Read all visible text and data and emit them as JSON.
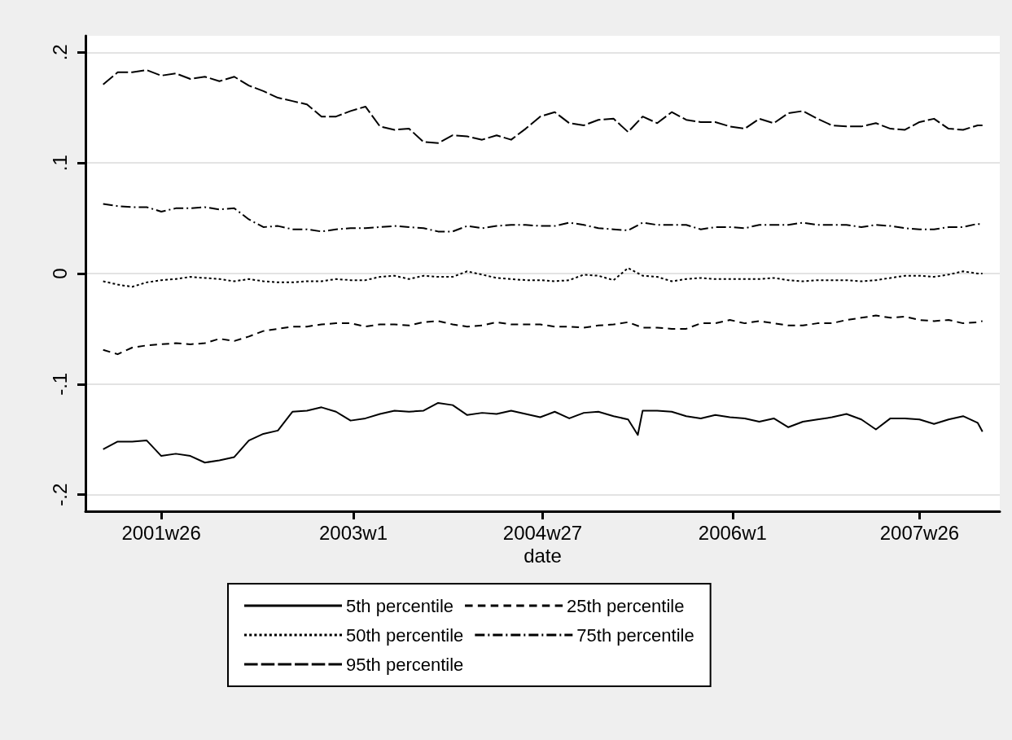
{
  "chart_data": {
    "type": "line",
    "xlabel": "date",
    "x": [
      "2001-01-08",
      "2001-02-19",
      "2001-04-02",
      "2001-05-14",
      "2001-06-25",
      "2001-08-06",
      "2001-09-17",
      "2001-10-29",
      "2001-12-10",
      "2002-01-22",
      "2002-03-05",
      "2002-04-16",
      "2002-05-28",
      "2002-07-09",
      "2002-08-20",
      "2002-10-01",
      "2002-11-12",
      "2002-12-24",
      "2003-02-05",
      "2003-03-19",
      "2003-04-30",
      "2003-06-11",
      "2003-07-23",
      "2003-09-03",
      "2003-10-15",
      "2003-11-26",
      "2004-01-08",
      "2004-02-19",
      "2004-04-01",
      "2004-05-13",
      "2004-06-24",
      "2004-08-05",
      "2004-09-16",
      "2004-10-28",
      "2004-12-09",
      "2005-01-22",
      "2005-03-05",
      "2005-04-16",
      "2005-05-28",
      "2005-07-09",
      "2005-08-20",
      "2005-10-01",
      "2005-11-12",
      "2005-12-24",
      "2006-02-05",
      "2006-03-19",
      "2006-04-30",
      "2006-06-11",
      "2006-07-23",
      "2006-09-03",
      "2006-10-15",
      "2006-11-26",
      "2007-01-08",
      "2007-02-19",
      "2007-04-02",
      "2007-05-14",
      "2007-06-25",
      "2007-08-06",
      "2007-09-17",
      "2007-10-29",
      "2007-12-10",
      "2007-12-24"
    ],
    "series": [
      {
        "name": "5th percentile",
        "color": "#000000",
        "line_style": "solid",
        "x": [
          "2001-01-08",
          "2001-02-19",
          "2001-04-02",
          "2001-05-14",
          "2001-06-25",
          "2001-08-06",
          "2001-09-17",
          "2001-10-29",
          "2001-12-10",
          "2002-01-22",
          "2002-03-05",
          "2002-04-16",
          "2002-05-28",
          "2002-07-09",
          "2002-08-20",
          "2002-10-01",
          "2002-11-12",
          "2002-12-24",
          "2003-02-05",
          "2003-03-19",
          "2003-04-30",
          "2003-06-11",
          "2003-07-23",
          "2003-09-03",
          "2003-10-15",
          "2003-11-26",
          "2004-01-08",
          "2004-02-19",
          "2004-04-01",
          "2004-05-13",
          "2004-06-24",
          "2004-08-05",
          "2004-09-16",
          "2004-10-28",
          "2004-12-09",
          "2005-01-22",
          "2005-03-05",
          "2005-04-02",
          "2005-04-16",
          "2005-05-28",
          "2005-07-09",
          "2005-08-20",
          "2005-10-01",
          "2005-11-12",
          "2005-12-24",
          "2006-02-05",
          "2006-03-19",
          "2006-04-30",
          "2006-06-11",
          "2006-07-23",
          "2006-09-03",
          "2006-10-15",
          "2006-11-26",
          "2007-01-08",
          "2007-02-19",
          "2007-04-02",
          "2007-05-14",
          "2007-06-25",
          "2007-08-06",
          "2007-09-17",
          "2007-10-29",
          "2007-12-10",
          "2007-12-24"
        ],
        "values": [
          -0.159,
          -0.152,
          -0.152,
          -0.151,
          -0.165,
          -0.163,
          -0.165,
          -0.171,
          -0.169,
          -0.166,
          -0.151,
          -0.145,
          -0.142,
          -0.125,
          -0.124,
          -0.121,
          -0.125,
          -0.133,
          -0.131,
          -0.127,
          -0.124,
          -0.125,
          -0.124,
          -0.117,
          -0.119,
          -0.128,
          -0.126,
          -0.127,
          -0.124,
          -0.127,
          -0.13,
          -0.125,
          -0.131,
          -0.126,
          -0.125,
          -0.129,
          -0.132,
          -0.146,
          -0.124,
          -0.124,
          -0.125,
          -0.129,
          -0.131,
          -0.128,
          -0.13,
          -0.131,
          -0.134,
          -0.131,
          -0.139,
          -0.134,
          -0.132,
          -0.13,
          -0.127,
          -0.132,
          -0.141,
          -0.131,
          -0.131,
          -0.132,
          -0.136,
          -0.132,
          -0.129,
          -0.135,
          -0.143
        ]
      },
      {
        "name": "25th percentile",
        "color": "#000000",
        "line_style": "dashed",
        "values": [
          -0.069,
          -0.073,
          -0.067,
          -0.065,
          -0.064,
          -0.063,
          -0.064,
          -0.063,
          -0.059,
          -0.061,
          -0.057,
          -0.052,
          -0.05,
          -0.048,
          -0.048,
          -0.046,
          -0.045,
          -0.045,
          -0.048,
          -0.046,
          -0.046,
          -0.047,
          -0.044,
          -0.043,
          -0.046,
          -0.048,
          -0.047,
          -0.044,
          -0.046,
          -0.046,
          -0.046,
          -0.048,
          -0.048,
          -0.049,
          -0.047,
          -0.046,
          -0.044,
          -0.049,
          -0.049,
          -0.05,
          -0.05,
          -0.045,
          -0.045,
          -0.042,
          -0.045,
          -0.043,
          -0.045,
          -0.047,
          -0.047,
          -0.045,
          -0.045,
          -0.042,
          -0.04,
          -0.038,
          -0.04,
          -0.039,
          -0.042,
          -0.043,
          -0.042,
          -0.045,
          -0.044,
          -0.043
        ]
      },
      {
        "name": "50th percentile",
        "color": "#000000",
        "line_style": "dotted",
        "values": [
          -0.007,
          -0.01,
          -0.012,
          -0.008,
          -0.006,
          -0.005,
          -0.003,
          -0.004,
          -0.005,
          -0.007,
          -0.005,
          -0.007,
          -0.008,
          -0.008,
          -0.007,
          -0.007,
          -0.005,
          -0.006,
          -0.006,
          -0.003,
          -0.002,
          -0.005,
          -0.002,
          -0.003,
          -0.003,
          0.002,
          -0.001,
          -0.004,
          -0.005,
          -0.006,
          -0.006,
          -0.007,
          -0.006,
          -0.001,
          -0.002,
          -0.006,
          0.005,
          -0.002,
          -0.003,
          -0.007,
          -0.005,
          -0.004,
          -0.005,
          -0.005,
          -0.005,
          -0.005,
          -0.004,
          -0.006,
          -0.007,
          -0.006,
          -0.006,
          -0.006,
          -0.007,
          -0.006,
          -0.004,
          -0.002,
          -0.002,
          -0.003,
          -0.001,
          0.002,
          0.0,
          0.0
        ]
      },
      {
        "name": "75th percentile",
        "color": "#000000",
        "line_style": "dashdot",
        "values": [
          0.063,
          0.061,
          0.06,
          0.06,
          0.056,
          0.059,
          0.059,
          0.06,
          0.058,
          0.059,
          0.049,
          0.042,
          0.043,
          0.04,
          0.04,
          0.038,
          0.04,
          0.041,
          0.041,
          0.042,
          0.043,
          0.042,
          0.041,
          0.038,
          0.038,
          0.043,
          0.041,
          0.043,
          0.044,
          0.044,
          0.043,
          0.043,
          0.046,
          0.044,
          0.041,
          0.04,
          0.039,
          0.046,
          0.044,
          0.044,
          0.044,
          0.04,
          0.042,
          0.042,
          0.041,
          0.044,
          0.044,
          0.044,
          0.046,
          0.044,
          0.044,
          0.044,
          0.042,
          0.044,
          0.043,
          0.041,
          0.04,
          0.04,
          0.042,
          0.042,
          0.045,
          0.044
        ]
      },
      {
        "name": "95th percentile",
        "color": "#000000",
        "line_style": "longdash",
        "values": [
          0.171,
          0.182,
          0.182,
          0.184,
          0.179,
          0.181,
          0.176,
          0.178,
          0.174,
          0.178,
          0.17,
          0.165,
          0.159,
          0.156,
          0.153,
          0.142,
          0.142,
          0.147,
          0.151,
          0.133,
          0.13,
          0.131,
          0.119,
          0.118,
          0.125,
          0.124,
          0.121,
          0.125,
          0.121,
          0.131,
          0.142,
          0.146,
          0.136,
          0.134,
          0.139,
          0.14,
          0.128,
          0.142,
          0.136,
          0.146,
          0.139,
          0.137,
          0.137,
          0.133,
          0.131,
          0.14,
          0.136,
          0.145,
          0.147,
          0.14,
          0.134,
          0.133,
          0.133,
          0.136,
          0.131,
          0.13,
          0.137,
          0.14,
          0.131,
          0.13,
          0.134,
          0.134
        ]
      }
    ],
    "xlim": [
      "2000-11-18",
      "2008-02-12"
    ],
    "xticks": [
      {
        "value": "2001-06-25",
        "label": "2001w26"
      },
      {
        "value": "2003-01-01",
        "label": "2003w1"
      },
      {
        "value": "2004-07-01",
        "label": "2004w27"
      },
      {
        "value": "2006-01-01",
        "label": "2006w1"
      },
      {
        "value": "2007-06-25",
        "label": "2007w26"
      }
    ],
    "ylim": [
      -0.215,
      0.215
    ],
    "yticks": [
      {
        "value": -0.2,
        "label": "-.2"
      },
      {
        "value": -0.1,
        "label": "-.1"
      },
      {
        "value": 0,
        "label": "0"
      },
      {
        "value": 0.1,
        "label": ".1"
      },
      {
        "value": 0.2,
        "label": ".2"
      }
    ],
    "grid": "y",
    "legend": "bottom",
    "marker": "none"
  }
}
